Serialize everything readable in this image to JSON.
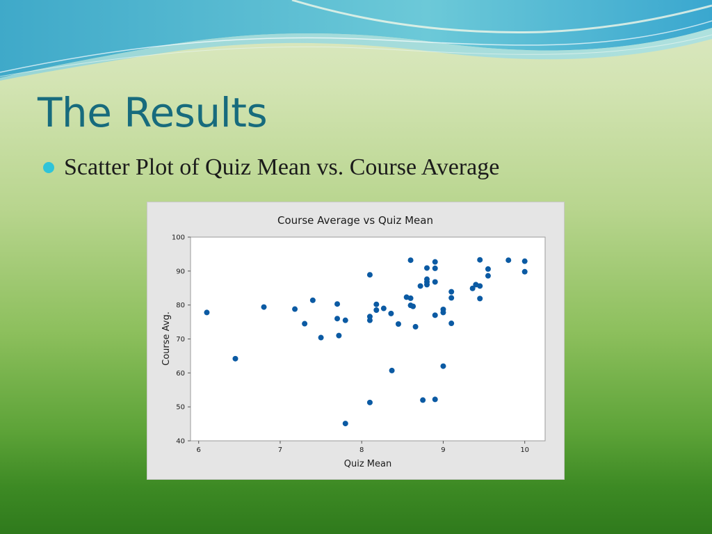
{
  "slide": {
    "title": "The Results",
    "bullet": "Scatter Plot of Quiz Mean vs. Course Average",
    "colors": {
      "title": "#176b7d",
      "bullet": "#2ec4d9",
      "point": "#0b5aa3"
    }
  },
  "chart_data": {
    "type": "scatter",
    "title": "Course Average vs Quiz Mean",
    "xlabel": "Quiz Mean",
    "ylabel": "Course Avg.",
    "xlim": [
      5.9,
      10.25
    ],
    "ylim": [
      40,
      100
    ],
    "xticks": [
      6,
      7,
      8,
      9,
      10
    ],
    "yticks": [
      40,
      50,
      60,
      70,
      80,
      90,
      100
    ],
    "grid": false,
    "legend": "none",
    "points": [
      {
        "x": 6.1,
        "y": 77.8
      },
      {
        "x": 6.45,
        "y": 64.2
      },
      {
        "x": 6.8,
        "y": 79.4
      },
      {
        "x": 7.18,
        "y": 78.8
      },
      {
        "x": 7.3,
        "y": 74.5
      },
      {
        "x": 7.4,
        "y": 81.4
      },
      {
        "x": 7.5,
        "y": 70.4
      },
      {
        "x": 7.7,
        "y": 80.3
      },
      {
        "x": 7.7,
        "y": 76.0
      },
      {
        "x": 7.72,
        "y": 71.0
      },
      {
        "x": 7.8,
        "y": 75.5
      },
      {
        "x": 7.8,
        "y": 45.1
      },
      {
        "x": 8.1,
        "y": 88.9
      },
      {
        "x": 8.1,
        "y": 76.6
      },
      {
        "x": 8.1,
        "y": 75.5
      },
      {
        "x": 8.1,
        "y": 51.3
      },
      {
        "x": 8.18,
        "y": 80.2
      },
      {
        "x": 8.18,
        "y": 78.5
      },
      {
        "x": 8.27,
        "y": 79.0
      },
      {
        "x": 8.36,
        "y": 77.5
      },
      {
        "x": 8.37,
        "y": 60.7
      },
      {
        "x": 8.45,
        "y": 74.4
      },
      {
        "x": 8.55,
        "y": 82.3
      },
      {
        "x": 8.6,
        "y": 93.2
      },
      {
        "x": 8.6,
        "y": 82.0
      },
      {
        "x": 8.6,
        "y": 79.9
      },
      {
        "x": 8.63,
        "y": 79.6
      },
      {
        "x": 8.66,
        "y": 73.6
      },
      {
        "x": 8.72,
        "y": 85.6
      },
      {
        "x": 8.75,
        "y": 52.0
      },
      {
        "x": 8.8,
        "y": 90.9
      },
      {
        "x": 8.8,
        "y": 87.6
      },
      {
        "x": 8.8,
        "y": 86.8
      },
      {
        "x": 8.8,
        "y": 86.0
      },
      {
        "x": 8.9,
        "y": 92.7
      },
      {
        "x": 8.9,
        "y": 90.8
      },
      {
        "x": 8.9,
        "y": 86.8
      },
      {
        "x": 8.9,
        "y": 77.0
      },
      {
        "x": 8.9,
        "y": 52.2
      },
      {
        "x": 9.0,
        "y": 78.7
      },
      {
        "x": 9.0,
        "y": 77.8
      },
      {
        "x": 9.0,
        "y": 62.0
      },
      {
        "x": 9.1,
        "y": 83.9
      },
      {
        "x": 9.1,
        "y": 82.1
      },
      {
        "x": 9.1,
        "y": 74.6
      },
      {
        "x": 9.36,
        "y": 84.9
      },
      {
        "x": 9.4,
        "y": 86.0
      },
      {
        "x": 9.45,
        "y": 93.3
      },
      {
        "x": 9.45,
        "y": 85.6
      },
      {
        "x": 9.45,
        "y": 81.9
      },
      {
        "x": 9.55,
        "y": 90.6
      },
      {
        "x": 9.55,
        "y": 88.6
      },
      {
        "x": 9.8,
        "y": 93.2
      },
      {
        "x": 10.0,
        "y": 92.9
      },
      {
        "x": 10.0,
        "y": 89.8
      }
    ]
  }
}
